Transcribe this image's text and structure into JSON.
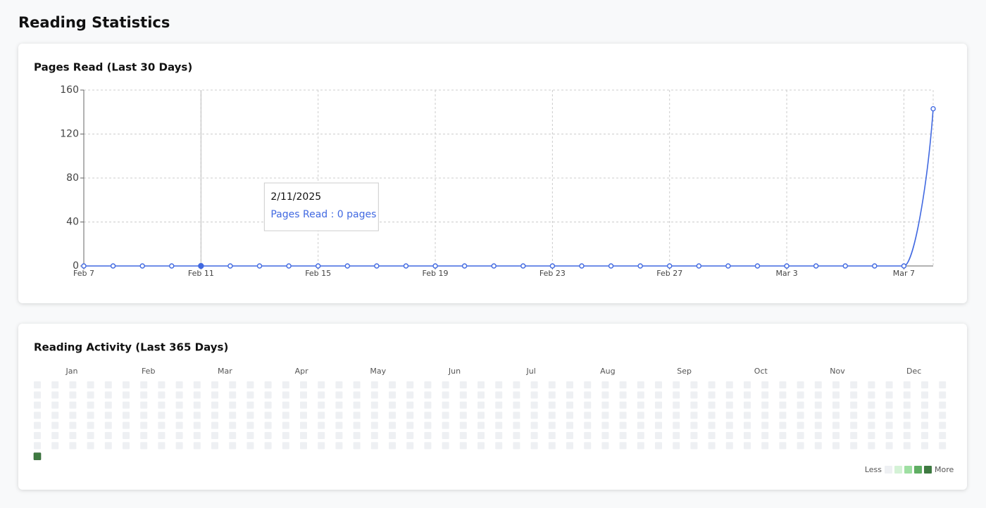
{
  "title": "Reading Statistics",
  "chart_data": {
    "type": "line",
    "title": "Pages Read (Last 30 Days)",
    "categories": [
      "Feb 7",
      null,
      null,
      null,
      "Feb 11",
      null,
      null,
      null,
      "Feb 15",
      null,
      null,
      null,
      "Feb 19",
      null,
      null,
      null,
      "Feb 23",
      null,
      null,
      null,
      "Feb 27",
      null,
      null,
      null,
      "Mar 3",
      null,
      null,
      null,
      "Mar 7",
      null
    ],
    "series": [
      {
        "name": "Pages Read",
        "color": "#4169e1",
        "values": [
          0,
          0,
          0,
          0,
          0,
          0,
          0,
          0,
          0,
          0,
          0,
          0,
          0,
          0,
          0,
          0,
          0,
          0,
          0,
          0,
          0,
          0,
          0,
          0,
          0,
          0,
          0,
          0,
          0,
          143
        ]
      }
    ],
    "ylim": [
      0,
      160
    ],
    "yticks": [
      0,
      40,
      80,
      120,
      160
    ],
    "grid": true,
    "tooltip": {
      "index": 4,
      "date": "2/11/2025",
      "text": "Pages Read : 0 pages"
    }
  },
  "activity": {
    "title": "Reading Activity (Last 365 Days)",
    "months": [
      "Jan",
      "Feb",
      "Mar",
      "Apr",
      "May",
      "Jun",
      "Jul",
      "Aug",
      "Sep",
      "Oct",
      "Nov",
      "Dec"
    ],
    "colors": [
      "#eef0f3",
      "#d4f2d6",
      "#9edfa2",
      "#5fae63",
      "#3e7a41"
    ],
    "legend_less": "Less",
    "legend_more": "More",
    "levels": [
      0,
      0,
      0,
      0,
      0,
      0,
      0,
      0,
      0,
      0,
      0,
      0,
      0,
      0,
      0,
      0,
      0,
      0,
      0,
      0,
      0,
      0,
      0,
      0,
      0,
      0,
      0,
      0,
      0,
      0,
      0,
      0,
      0,
      0,
      0,
      0,
      0,
      0,
      0,
      0,
      0,
      0,
      0,
      0,
      0,
      0,
      0,
      0,
      0,
      0,
      0,
      0,
      0,
      0,
      0,
      0,
      0,
      0,
      0,
      0,
      0,
      0,
      0,
      0,
      0,
      0,
      0,
      0,
      0,
      0,
      0,
      0,
      0,
      0,
      0,
      0,
      0,
      0,
      0,
      0,
      0,
      0,
      0,
      0,
      0,
      0,
      0,
      0,
      0,
      0,
      0,
      0,
      0,
      0,
      0,
      0,
      0,
      0,
      0,
      0,
      0,
      0,
      0,
      0,
      0,
      0,
      0,
      0,
      0,
      0,
      0,
      0,
      0,
      0,
      0,
      0,
      0,
      0,
      0,
      0,
      0,
      0,
      0,
      0,
      0,
      0,
      0,
      0,
      0,
      0,
      0,
      0,
      0,
      0,
      0,
      0,
      0,
      0,
      0,
      0,
      0,
      0,
      0,
      0,
      0,
      0,
      0,
      0,
      0,
      0,
      0,
      0,
      0,
      0,
      0,
      0,
      0,
      0,
      0,
      0,
      0,
      0,
      0,
      0,
      0,
      0,
      0,
      0,
      0,
      0,
      0,
      0,
      0,
      0,
      0,
      0,
      0,
      0,
      0,
      0,
      0,
      0,
      0,
      0,
      0,
      0,
      0,
      0,
      0,
      0,
      0,
      0,
      0,
      0,
      0,
      0,
      0,
      0,
      0,
      0,
      0,
      0,
      0,
      0,
      0,
      0,
      0,
      0,
      0,
      0,
      0,
      0,
      0,
      0,
      0,
      0,
      0,
      0,
      0,
      0,
      0,
      0,
      0,
      0,
      0,
      0,
      0,
      0,
      0,
      0,
      0,
      0,
      0,
      0,
      0,
      0,
      0,
      0,
      0,
      0,
      0,
      0,
      0,
      0,
      0,
      0,
      0,
      0,
      0,
      0,
      0,
      0,
      0,
      0,
      0,
      0,
      0,
      0,
      0,
      0,
      0,
      0,
      0,
      0,
      0,
      0,
      0,
      0,
      0,
      0,
      0,
      0,
      0,
      0,
      0,
      0,
      0,
      0,
      0,
      0,
      0,
      0,
      0,
      0,
      0,
      0,
      0,
      0,
      0,
      0,
      0,
      0,
      0,
      0,
      0,
      0,
      0,
      0,
      0,
      0,
      0,
      0,
      0,
      0,
      0,
      0,
      0,
      0,
      0,
      0,
      0,
      0,
      0,
      0,
      0,
      0,
      0,
      0,
      0,
      0,
      0,
      0,
      0,
      0,
      0,
      0,
      0,
      0,
      0,
      0,
      0,
      0,
      0,
      0,
      0,
      0,
      0,
      0,
      0,
      0,
      0,
      0,
      0,
      0,
      0,
      0,
      0,
      0,
      0,
      0,
      0,
      0,
      0,
      0,
      0,
      0,
      0,
      0,
      0,
      0,
      0,
      0,
      0,
      0,
      4
    ]
  }
}
